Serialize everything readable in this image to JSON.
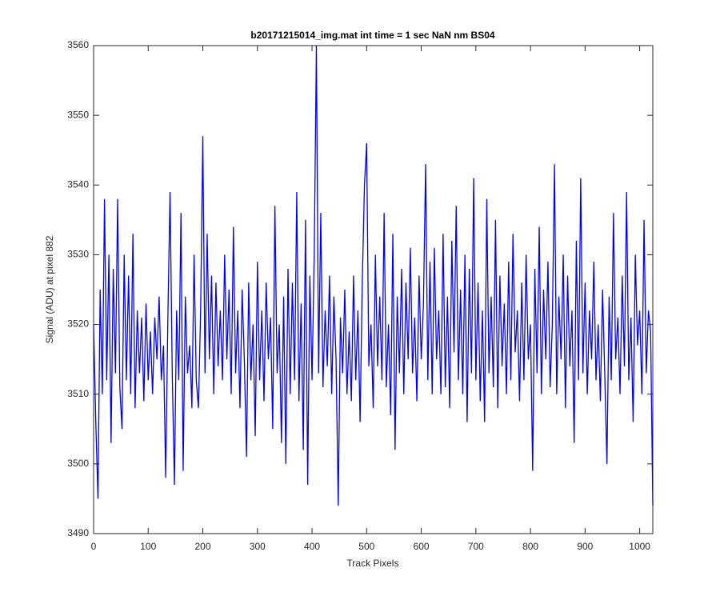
{
  "chart_data": {
    "type": "line",
    "title": "b20171215014_img.mat int time = 1 sec  NaN nm BS04",
    "xlabel": "Track Pixels",
    "ylabel": "Signal (ADU) at pixel 882",
    "xlim": [
      0,
      1024
    ],
    "xticks": [
      0,
      100,
      200,
      300,
      400,
      500,
      600,
      700,
      800,
      900,
      1000
    ],
    "ylim": [
      3490,
      3560
    ],
    "yticks": [
      3490,
      3500,
      3510,
      3520,
      3530,
      3540,
      3550,
      3560
    ],
    "x": [
      0,
      4,
      8,
      12,
      16,
      20,
      24,
      28,
      32,
      36,
      40,
      44,
      48,
      52,
      56,
      60,
      64,
      68,
      72,
      76,
      80,
      84,
      88,
      92,
      96,
      100,
      104,
      108,
      112,
      116,
      120,
      124,
      128,
      132,
      136,
      140,
      144,
      148,
      152,
      156,
      160,
      164,
      168,
      172,
      176,
      180,
      184,
      188,
      192,
      196,
      200,
      204,
      208,
      212,
      216,
      220,
      224,
      228,
      232,
      236,
      240,
      244,
      248,
      252,
      256,
      260,
      264,
      268,
      272,
      276,
      280,
      284,
      288,
      292,
      296,
      300,
      304,
      308,
      312,
      316,
      320,
      324,
      328,
      332,
      336,
      340,
      344,
      348,
      352,
      356,
      360,
      364,
      368,
      372,
      376,
      380,
      384,
      388,
      392,
      396,
      400,
      404,
      408,
      412,
      416,
      420,
      424,
      428,
      432,
      436,
      440,
      444,
      448,
      452,
      456,
      460,
      464,
      468,
      472,
      476,
      480,
      484,
      488,
      492,
      496,
      500,
      504,
      508,
      512,
      516,
      520,
      524,
      528,
      532,
      536,
      540,
      544,
      548,
      552,
      556,
      560,
      564,
      568,
      572,
      576,
      580,
      584,
      588,
      592,
      596,
      600,
      604,
      608,
      612,
      616,
      620,
      624,
      628,
      632,
      636,
      640,
      644,
      648,
      652,
      656,
      660,
      664,
      668,
      672,
      676,
      680,
      684,
      688,
      692,
      696,
      700,
      704,
      708,
      712,
      716,
      720,
      724,
      728,
      732,
      736,
      740,
      744,
      748,
      752,
      756,
      760,
      764,
      768,
      772,
      776,
      780,
      784,
      788,
      792,
      796,
      800,
      804,
      808,
      812,
      816,
      820,
      824,
      828,
      832,
      836,
      840,
      844,
      848,
      852,
      856,
      860,
      864,
      868,
      872,
      876,
      880,
      884,
      888,
      892,
      896,
      900,
      904,
      908,
      912,
      916,
      920,
      924,
      928,
      932,
      936,
      940,
      944,
      948,
      952,
      956,
      960,
      964,
      968,
      972,
      976,
      980,
      984,
      988,
      992,
      996,
      1000,
      1004,
      1008,
      1012,
      1016,
      1020,
      1024
    ],
    "series": [
      {
        "color": "#0000ff",
        "values": [
          3520,
          3506,
          3495,
          3525,
          3510,
          3538,
          3512,
          3530,
          3503,
          3528,
          3513,
          3538,
          3511,
          3505,
          3530,
          3512,
          3527,
          3510,
          3533,
          3508,
          3522,
          3513,
          3521,
          3509,
          3523,
          3512,
          3519,
          3510,
          3521,
          3515,
          3524,
          3512,
          3517,
          3498,
          3521,
          3539,
          3513,
          3497,
          3522,
          3512,
          3536,
          3499,
          3524,
          3513,
          3517,
          3508,
          3530,
          3512,
          3508,
          3522,
          3547,
          3513,
          3533,
          3515,
          3527,
          3510,
          3526,
          3514,
          3522,
          3512,
          3530,
          3515,
          3525,
          3510,
          3534,
          3513,
          3522,
          3508,
          3525,
          3515,
          3501,
          3526,
          3512,
          3520,
          3504,
          3529,
          3512,
          3522,
          3509,
          3526,
          3515,
          3521,
          3505,
          3537,
          3513,
          3520,
          3503,
          3524,
          3500,
          3528,
          3510,
          3526,
          3512,
          3539,
          3509,
          3523,
          3502,
          3535,
          3497,
          3527,
          3512,
          3530,
          3560,
          3513,
          3536,
          3511,
          3522,
          3514,
          3527,
          3510,
          3524,
          3515,
          3494,
          3521,
          3513,
          3525,
          3510,
          3519,
          3509,
          3527,
          3512,
          3522,
          3506,
          3526,
          3540,
          3546,
          3514,
          3520,
          3508,
          3530,
          3514,
          3524,
          3512,
          3536,
          3511,
          3520,
          3507,
          3533,
          3502,
          3524,
          3513,
          3528,
          3510,
          3526,
          3515,
          3531,
          3513,
          3521,
          3509,
          3527,
          3515,
          3523,
          3543,
          3512,
          3529,
          3510,
          3531,
          3515,
          3522,
          3510,
          3533,
          3511,
          3524,
          3508,
          3532,
          3516,
          3537,
          3512,
          3525,
          3510,
          3530,
          3506,
          3528,
          3513,
          3541,
          3512,
          3526,
          3509,
          3522,
          3506,
          3538,
          3513,
          3524,
          3511,
          3535,
          3508,
          3527,
          3514,
          3523,
          3510,
          3529,
          3512,
          3533,
          3516,
          3522,
          3509,
          3526,
          3512,
          3530,
          3515,
          3520,
          3499,
          3528,
          3513,
          3534,
          3510,
          3525,
          3515,
          3529,
          3511,
          3520,
          3543,
          3510,
          3524,
          3515,
          3530,
          3508,
          3527,
          3514,
          3522,
          3503,
          3532,
          3512,
          3541,
          3513,
          3526,
          3510,
          3522,
          3515,
          3529,
          3512,
          3520,
          3509,
          3525,
          3513,
          3500,
          3524,
          3512,
          3536,
          3515,
          3521,
          3510,
          3527,
          3514,
          3539,
          3512,
          3521,
          3506,
          3530,
          3517,
          3522,
          3510,
          3535,
          3513,
          3522,
          3519,
          3494
        ]
      }
    ]
  }
}
